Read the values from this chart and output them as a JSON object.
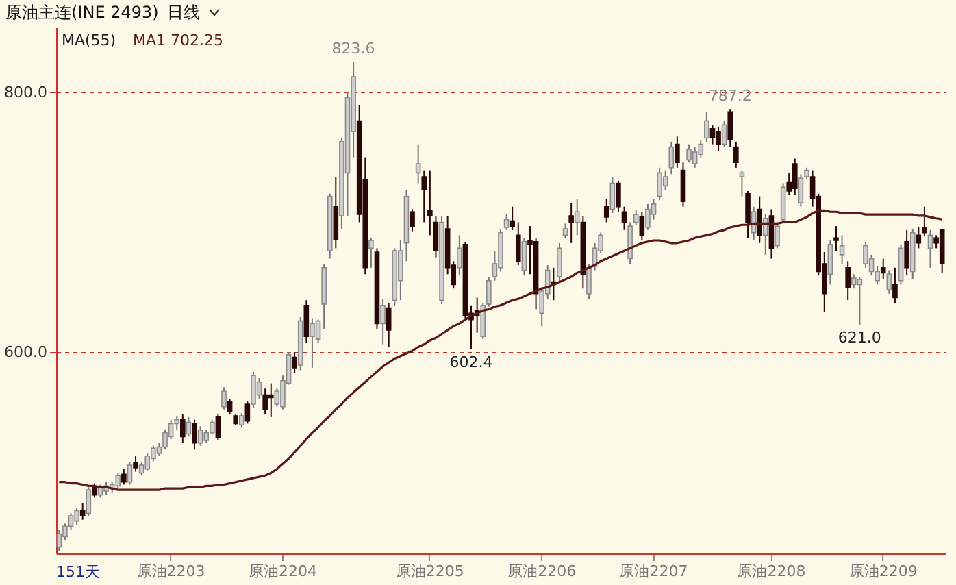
{
  "chart_data": {
    "type": "candlestick",
    "title": "原油主连(INE 2493)",
    "subtitle": "日线",
    "legend_title": "MA(55)",
    "legend": "top left",
    "grid": "y",
    "annotations": [
      "151天",
      {
        "text": "823.6",
        "y": 823.6
      },
      {
        "text": "787.2",
        "y": 787.2
      },
      {
        "text": "602.4",
        "y": 602.4
      },
      {
        "text": "621.0",
        "y": 621.0
      }
    ],
    "ylim": [
      445,
      850
    ],
    "yticks": [
      {
        "value": 600,
        "label": "600.0"
      },
      {
        "value": 800,
        "label": "800.0"
      }
    ],
    "categories": [
      null,
      null,
      null,
      null,
      null,
      null,
      null,
      null,
      null,
      null,
      null,
      null,
      null,
      null,
      null,
      null,
      null,
      null,
      null,
      "原油2203",
      null,
      null,
      null,
      null,
      null,
      null,
      null,
      null,
      null,
      null,
      null,
      null,
      null,
      null,
      null,
      null,
      null,
      null,
      "原油2204",
      null,
      null,
      null,
      null,
      null,
      null,
      null,
      null,
      null,
      null,
      null,
      null,
      null,
      null,
      null,
      null,
      null,
      null,
      null,
      null,
      null,
      null,
      null,
      null,
      "原油2205",
      null,
      null,
      null,
      null,
      null,
      null,
      null,
      null,
      null,
      null,
      null,
      null,
      null,
      null,
      null,
      null,
      null,
      null,
      "原油2206",
      null,
      null,
      null,
      null,
      null,
      null,
      null,
      null,
      null,
      null,
      null,
      null,
      null,
      null,
      null,
      null,
      null,
      null,
      "原油2207",
      null,
      null,
      null,
      null,
      null,
      null,
      null,
      null,
      null,
      null,
      null,
      null,
      null,
      null,
      null,
      null,
      null,
      null,
      null,
      "原油2208",
      null,
      null,
      null,
      null,
      null,
      null,
      null,
      null,
      null,
      null,
      null,
      null,
      null,
      null,
      null,
      null,
      null,
      null,
      "原油2209",
      null,
      null,
      null,
      null,
      null,
      null,
      null,
      null,
      null,
      null
    ],
    "ohlc": [
      [
        450,
        463,
        447,
        460
      ],
      [
        458,
        468,
        455,
        466
      ],
      [
        466,
        476,
        463,
        474
      ],
      [
        470,
        480,
        467,
        478
      ],
      [
        478,
        484,
        471,
        474
      ],
      [
        476,
        496,
        474,
        494
      ],
      [
        496,
        499,
        488,
        490
      ],
      [
        490,
        498,
        488,
        496
      ],
      [
        493,
        500,
        490,
        497
      ],
      [
        495,
        500,
        492,
        498
      ],
      [
        497,
        507,
        495,
        505
      ],
      [
        506,
        510,
        498,
        500
      ],
      [
        500,
        515,
        498,
        513
      ],
      [
        515,
        520,
        508,
        511
      ],
      [
        507,
        515,
        505,
        513
      ],
      [
        510,
        522,
        509,
        520
      ],
      [
        518,
        528,
        516,
        526
      ],
      [
        522,
        530,
        520,
        527
      ],
      [
        527,
        540,
        525,
        538
      ],
      [
        535,
        548,
        533,
        545
      ],
      [
        545,
        551,
        540,
        548
      ],
      [
        548,
        552,
        530,
        535
      ],
      [
        537,
        550,
        535,
        546
      ],
      [
        545,
        548,
        525,
        530
      ],
      [
        530,
        543,
        528,
        540
      ],
      [
        532,
        540,
        530,
        538
      ],
      [
        538,
        548,
        537,
        546
      ],
      [
        550,
        552,
        532,
        534
      ],
      [
        558,
        573,
        556,
        570
      ],
      [
        562,
        564,
        552,
        554
      ],
      [
        551,
        552,
        544,
        545
      ],
      [
        544,
        553,
        542,
        551
      ],
      [
        560,
        562,
        545,
        547
      ],
      [
        560,
        585,
        557,
        582
      ],
      [
        567,
        580,
        564,
        577
      ],
      [
        567,
        572,
        552,
        556
      ],
      [
        567,
        576,
        550,
        565
      ],
      [
        560,
        572,
        558,
        570
      ],
      [
        558,
        582,
        556,
        578
      ],
      [
        576,
        600,
        575,
        598
      ],
      [
        596,
        600,
        584,
        588
      ],
      [
        590,
        627,
        586,
        624
      ],
      [
        636,
        640,
        607,
        612
      ],
      [
        612,
        626,
        588,
        622
      ],
      [
        610,
        625,
        607,
        624
      ],
      [
        637,
        668,
        618,
        665
      ],
      [
        678,
        722,
        672,
        720
      ],
      [
        712,
        735,
        680,
        687
      ],
      [
        705,
        765,
        695,
        762
      ],
      [
        738,
        800,
        705,
        796
      ],
      [
        770,
        823.6,
        750,
        812
      ],
      [
        778,
        790,
        700,
        706
      ],
      [
        733,
        750,
        660,
        665
      ],
      [
        680,
        688,
        665,
        686
      ],
      [
        677,
        680,
        618,
        622
      ],
      [
        622,
        641,
        606,
        636
      ],
      [
        634,
        638,
        604,
        617
      ],
      [
        640,
        680,
        636,
        678
      ],
      [
        655,
        686,
        640,
        678
      ],
      [
        684,
        725,
        670,
        720
      ],
      [
        708,
        710,
        693,
        697
      ],
      [
        738,
        760,
        730,
        745
      ],
      [
        735,
        740,
        700,
        725
      ],
      [
        709,
        740,
        690,
        705
      ],
      [
        700,
        705,
        673,
        678
      ],
      [
        640,
        705,
        637,
        700
      ],
      [
        695,
        705,
        660,
        665
      ],
      [
        667,
        670,
        649,
        652
      ],
      [
        665,
        690,
        659,
        680
      ],
      [
        683,
        685,
        624,
        628
      ],
      [
        630,
        636,
        602.4,
        625
      ],
      [
        632,
        642,
        615,
        628
      ],
      [
        612,
        638,
        610,
        636
      ],
      [
        637,
        658,
        635,
        655
      ],
      [
        658,
        678,
        655,
        668
      ],
      [
        665,
        695,
        662,
        692
      ],
      [
        696,
        706,
        694,
        702
      ],
      [
        701,
        712,
        694,
        697
      ],
      [
        690,
        700,
        667,
        670
      ],
      [
        663,
        688,
        659,
        685
      ],
      [
        686,
        697,
        660,
        683
      ],
      [
        685,
        688,
        633,
        645
      ],
      [
        630,
        650,
        620,
        647
      ],
      [
        645,
        667,
        641,
        663
      ],
      [
        654,
        665,
        640,
        652
      ],
      [
        658,
        684,
        654,
        680
      ],
      [
        690,
        699,
        688,
        695
      ],
      [
        705,
        715,
        684,
        700
      ],
      [
        700,
        718,
        690,
        708
      ],
      [
        700,
        705,
        649,
        660
      ],
      [
        645,
        668,
        641,
        665
      ],
      [
        666,
        684,
        663,
        680
      ],
      [
        678,
        692,
        676,
        690
      ],
      [
        712,
        718,
        700,
        704
      ],
      [
        710,
        735,
        707,
        730
      ],
      [
        730,
        732,
        708,
        712
      ],
      [
        708,
        712,
        694,
        700
      ],
      [
        672,
        700,
        668,
        697
      ],
      [
        700,
        709,
        698,
        706
      ],
      [
        704,
        708,
        686,
        690
      ],
      [
        696,
        714,
        694,
        710
      ],
      [
        706,
        718,
        702,
        714
      ],
      [
        720,
        742,
        717,
        738
      ],
      [
        728,
        740,
        725,
        735
      ],
      [
        742,
        762,
        737,
        758
      ],
      [
        760,
        766,
        742,
        746
      ],
      [
        740,
        746,
        712,
        716
      ],
      [
        748,
        760,
        746,
        756
      ],
      [
        745,
        758,
        742,
        754
      ],
      [
        752,
        763,
        750,
        760
      ],
      [
        765,
        785,
        762,
        778
      ],
      [
        772,
        775,
        760,
        765
      ],
      [
        770,
        773,
        755,
        760
      ],
      [
        760,
        778,
        758,
        775
      ],
      [
        785,
        787.2,
        758,
        764
      ],
      [
        758,
        762,
        742,
        746
      ],
      [
        735,
        740,
        720,
        738
      ],
      [
        722,
        724,
        688,
        700
      ],
      [
        692,
        712,
        686,
        708
      ],
      [
        710,
        720,
        684,
        690
      ],
      [
        690,
        706,
        675,
        703
      ],
      [
        705,
        710,
        672,
        680
      ],
      [
        682,
        700,
        680,
        697
      ],
      [
        702,
        730,
        700,
        727
      ],
      [
        731,
        738,
        721,
        724
      ],
      [
        745,
        749,
        721,
        726
      ],
      [
        715,
        737,
        712,
        734
      ],
      [
        735,
        742,
        733,
        740
      ],
      [
        735,
        740,
        712,
        718
      ],
      [
        720,
        722,
        659,
        662
      ],
      [
        668,
        677,
        631,
        645
      ],
      [
        660,
        686,
        652,
        683
      ],
      [
        688,
        697,
        678,
        686
      ],
      [
        675,
        690,
        668,
        682
      ],
      [
        665,
        670,
        640,
        650
      ],
      [
        652,
        660,
        649,
        657
      ],
      [
        652,
        658,
        621,
        656
      ],
      [
        668,
        685,
        665,
        682
      ],
      [
        662,
        675,
        659,
        672
      ],
      [
        655,
        666,
        652,
        662
      ],
      [
        665,
        672,
        656,
        661
      ],
      [
        648,
        663,
        645,
        660
      ],
      [
        652,
        665,
        638,
        642
      ],
      [
        655,
        683,
        652,
        680
      ],
      [
        685,
        694,
        659,
        665
      ],
      [
        662,
        695,
        656,
        692
      ],
      [
        690,
        696,
        680,
        684
      ],
      [
        696,
        712,
        689,
        692
      ],
      [
        680,
        694,
        665,
        690
      ],
      [
        688,
        690,
        680,
        684
      ],
      [
        694,
        695,
        661,
        668
      ]
    ],
    "series": [
      {
        "name": "MA1 702.25",
        "type": "line",
        "color": "#5c1a14",
        "values": [
          500,
          500,
          499,
          499,
          498,
          497,
          497,
          496,
          496,
          495,
          494,
          494,
          494,
          494,
          494,
          494,
          494,
          494,
          495,
          495,
          495,
          495,
          496,
          496,
          496,
          497,
          497,
          498,
          498,
          499,
          500,
          501,
          502,
          503,
          504,
          505,
          507,
          510,
          514,
          518,
          523,
          528,
          533,
          538,
          542,
          547,
          551,
          556,
          560,
          565,
          569,
          573,
          577,
          581,
          585,
          589,
          592,
          595,
          597,
          599,
          601,
          604,
          606,
          609,
          611,
          614,
          617,
          620,
          622,
          625,
          628,
          630,
          632,
          633,
          635,
          636,
          638,
          640,
          641,
          643,
          645,
          647,
          649,
          650,
          652,
          654,
          656,
          658,
          661,
          663,
          665,
          667,
          670,
          672,
          674,
          676,
          678,
          680,
          682,
          684,
          685,
          686,
          686,
          685,
          684,
          684,
          685,
          686,
          688,
          689,
          690,
          691,
          693,
          694,
          696,
          697,
          698,
          698,
          699,
          699,
          699,
          699,
          699,
          700,
          700,
          700,
          702,
          704,
          707,
          709,
          709,
          708,
          708,
          707,
          707,
          707,
          707,
          706,
          706,
          706,
          706,
          706,
          706,
          706,
          706,
          706,
          705,
          705,
          704,
          703,
          702.25
        ]
      }
    ]
  }
}
